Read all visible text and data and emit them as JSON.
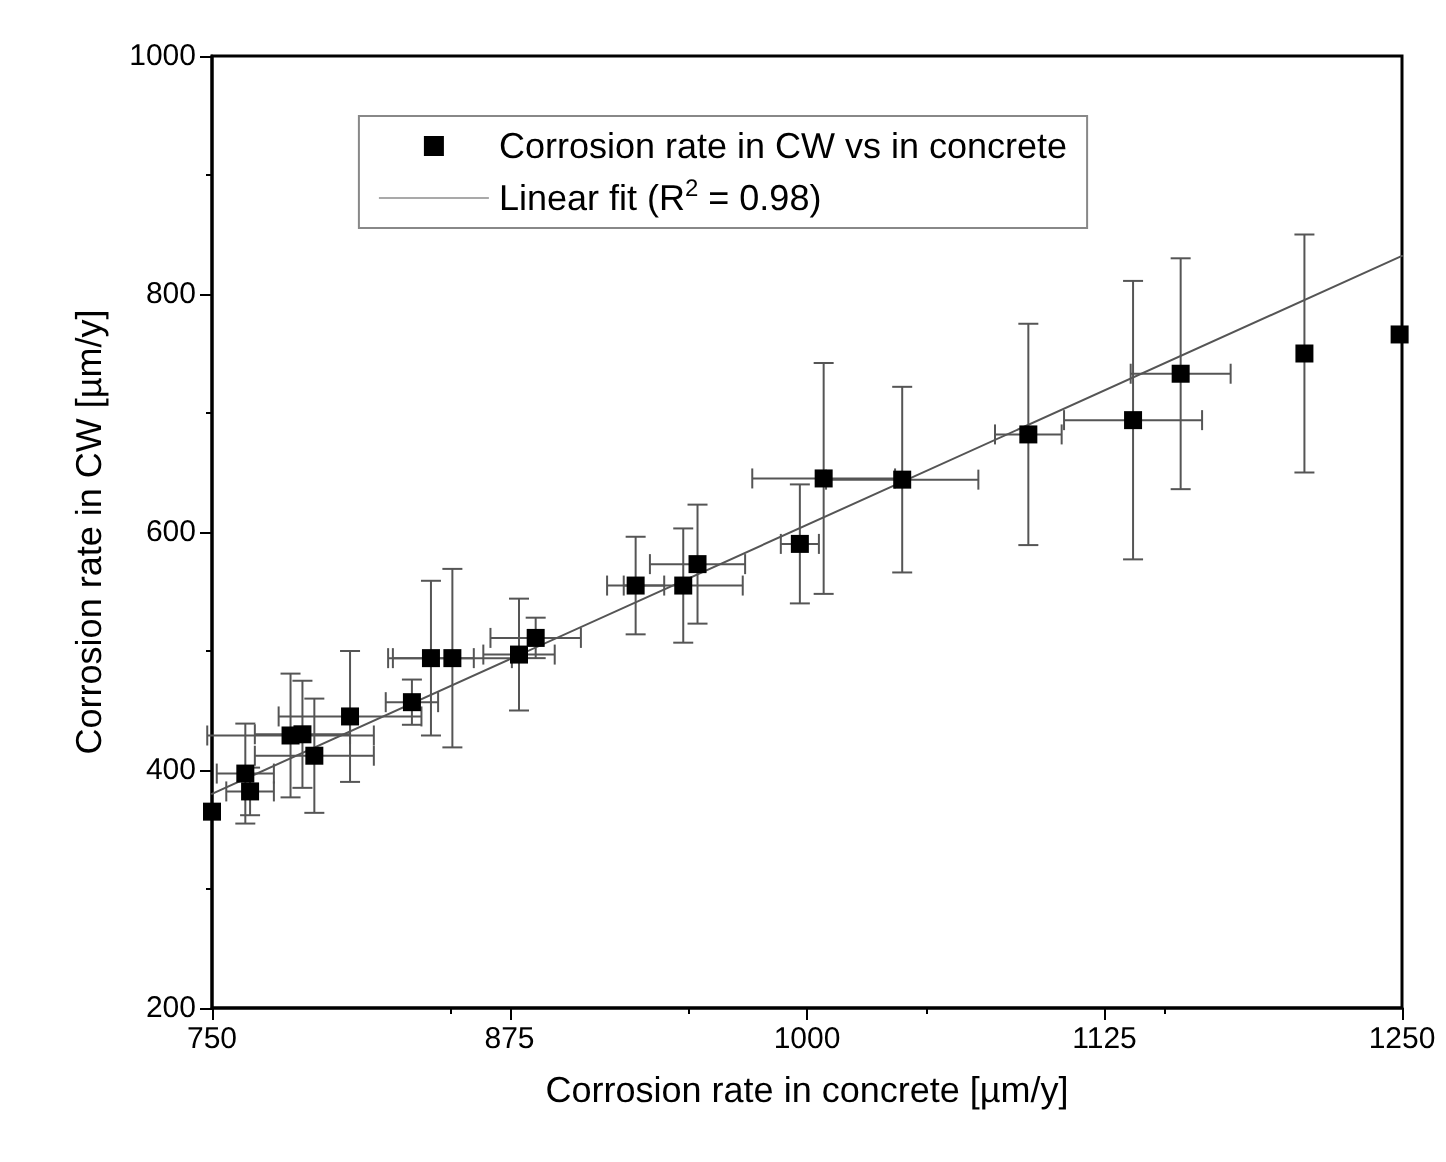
{
  "chart_data": {
    "type": "scatter",
    "xlabel": "Corrosion rate in concrete [µm/y]",
    "ylabel": "Corrosion rate in CW [µm/y]",
    "xlim": [
      750,
      1250
    ],
    "xticks": [
      750,
      875,
      1000,
      1125,
      1250
    ],
    "ylim": [
      200,
      1000
    ],
    "yticks": [
      200,
      400,
      600,
      800,
      1000
    ],
    "grid": false,
    "legend": "top",
    "marker": "square",
    "series": [
      {
        "name": "Corrosion rate in CW vs in concrete",
        "color": "#000000",
        "x": [
          750,
          764,
          766,
          783,
          788,
          793,
          808,
          834,
          842,
          851,
          879,
          886,
          928,
          948,
          954,
          997,
          1007,
          1040,
          1093,
          1137,
          1157,
          1209,
          1249
        ],
        "values": [
          365,
          397,
          382,
          429,
          430,
          412,
          445,
          457,
          494,
          494,
          497,
          511,
          555,
          555,
          573,
          590,
          645,
          644,
          682,
          694,
          733,
          750,
          766
        ],
        "errors": [
          null,
          42,
          20,
          52,
          45,
          48,
          55,
          19,
          65,
          75,
          47,
          17,
          41,
          48,
          50,
          50,
          97,
          78,
          93,
          117,
          97,
          100,
          null
        ],
        "xerrors": [
          null,
          12,
          10,
          35,
          20,
          25,
          30,
          11,
          18,
          25,
          15,
          19,
          12,
          25,
          20,
          8,
          30,
          32,
          14,
          29,
          21,
          null,
          null
        ]
      },
      {
        "name": "Linear fit (R$^{2}$ = 0.98)",
        "type": "line",
        "color": "#555555",
        "marker": "none",
        "x": [
          750,
          1250
        ],
        "values": [
          380,
          832
        ]
      }
    ]
  }
}
